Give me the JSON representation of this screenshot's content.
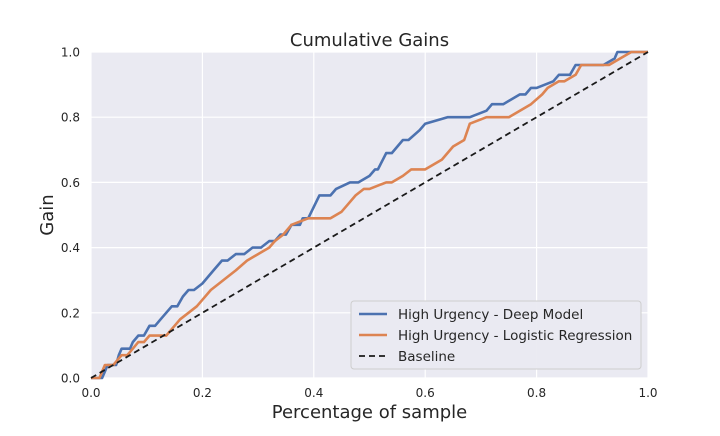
{
  "chart_data": {
    "type": "line",
    "title": "Cumulative Gains",
    "xlabel": "Percentage of sample",
    "ylabel": "Gain",
    "xlim": [
      0,
      1
    ],
    "ylim": [
      0,
      1
    ],
    "xticks": [
      "0.0",
      "0.2",
      "0.4",
      "0.6",
      "0.8",
      "1.0"
    ],
    "yticks": [
      "0.0",
      "0.2",
      "0.4",
      "0.6",
      "0.8",
      "1.0"
    ],
    "grid": true,
    "legend_position": "lower-right",
    "series": [
      {
        "name": "High Urgency - Deep Model",
        "color": "#4c72b0",
        "style": "solid",
        "x": [
          0.0,
          0.02,
          0.03,
          0.045,
          0.05,
          0.055,
          0.07,
          0.075,
          0.085,
          0.095,
          0.105,
          0.115,
          0.125,
          0.135,
          0.145,
          0.155,
          0.165,
          0.175,
          0.185,
          0.2,
          0.21,
          0.22,
          0.235,
          0.245,
          0.26,
          0.275,
          0.29,
          0.305,
          0.32,
          0.33,
          0.34,
          0.35,
          0.36,
          0.375,
          0.38,
          0.39,
          0.41,
          0.43,
          0.44,
          0.465,
          0.48,
          0.5,
          0.51,
          0.515,
          0.53,
          0.54,
          0.55,
          0.56,
          0.57,
          0.59,
          0.6,
          0.64,
          0.67,
          0.68,
          0.71,
          0.72,
          0.74,
          0.77,
          0.78,
          0.79,
          0.8,
          0.8,
          0.83,
          0.84,
          0.86,
          0.87,
          0.9,
          0.92,
          0.94,
          0.945,
          0.96,
          1.0
        ],
        "y": [
          0.0,
          0.0,
          0.04,
          0.04,
          0.07,
          0.09,
          0.09,
          0.11,
          0.13,
          0.13,
          0.16,
          0.16,
          0.18,
          0.2,
          0.22,
          0.22,
          0.25,
          0.27,
          0.27,
          0.29,
          0.31,
          0.33,
          0.36,
          0.36,
          0.38,
          0.38,
          0.4,
          0.4,
          0.42,
          0.42,
          0.44,
          0.44,
          0.47,
          0.47,
          0.49,
          0.49,
          0.56,
          0.56,
          0.58,
          0.6,
          0.6,
          0.62,
          0.64,
          0.64,
          0.69,
          0.69,
          0.71,
          0.73,
          0.73,
          0.76,
          0.78,
          0.8,
          0.8,
          0.8,
          0.82,
          0.84,
          0.84,
          0.87,
          0.87,
          0.89,
          0.89,
          0.89,
          0.91,
          0.93,
          0.93,
          0.96,
          0.96,
          0.96,
          0.98,
          1.0,
          1.0,
          1.0
        ]
      },
      {
        "name": "High Urgency - Logistic Regression",
        "color": "#dd8452",
        "style": "solid",
        "x": [
          0.0,
          0.015,
          0.025,
          0.04,
          0.055,
          0.065,
          0.075,
          0.085,
          0.095,
          0.105,
          0.12,
          0.135,
          0.15,
          0.16,
          0.175,
          0.19,
          0.2,
          0.215,
          0.23,
          0.245,
          0.26,
          0.28,
          0.3,
          0.32,
          0.33,
          0.345,
          0.36,
          0.39,
          0.42,
          0.43,
          0.45,
          0.46,
          0.475,
          0.49,
          0.5,
          0.53,
          0.54,
          0.56,
          0.575,
          0.59,
          0.6,
          0.63,
          0.65,
          0.67,
          0.68,
          0.71,
          0.72,
          0.75,
          0.79,
          0.81,
          0.82,
          0.84,
          0.85,
          0.87,
          0.88,
          0.9,
          0.93,
          0.95,
          0.97,
          1.0
        ],
        "y": [
          0.0,
          0.0,
          0.04,
          0.04,
          0.07,
          0.07,
          0.09,
          0.11,
          0.11,
          0.13,
          0.13,
          0.13,
          0.16,
          0.18,
          0.2,
          0.22,
          0.24,
          0.27,
          0.29,
          0.31,
          0.33,
          0.36,
          0.38,
          0.4,
          0.42,
          0.44,
          0.47,
          0.49,
          0.49,
          0.49,
          0.51,
          0.53,
          0.56,
          0.58,
          0.58,
          0.6,
          0.6,
          0.62,
          0.64,
          0.64,
          0.64,
          0.67,
          0.71,
          0.73,
          0.78,
          0.8,
          0.8,
          0.8,
          0.84,
          0.87,
          0.89,
          0.91,
          0.91,
          0.93,
          0.96,
          0.96,
          0.96,
          0.98,
          1.0,
          1.0
        ]
      },
      {
        "name": "Baseline",
        "color": "#1a1a1a",
        "style": "dashed",
        "x": [
          0,
          1
        ],
        "y": [
          0,
          1
        ]
      }
    ]
  }
}
